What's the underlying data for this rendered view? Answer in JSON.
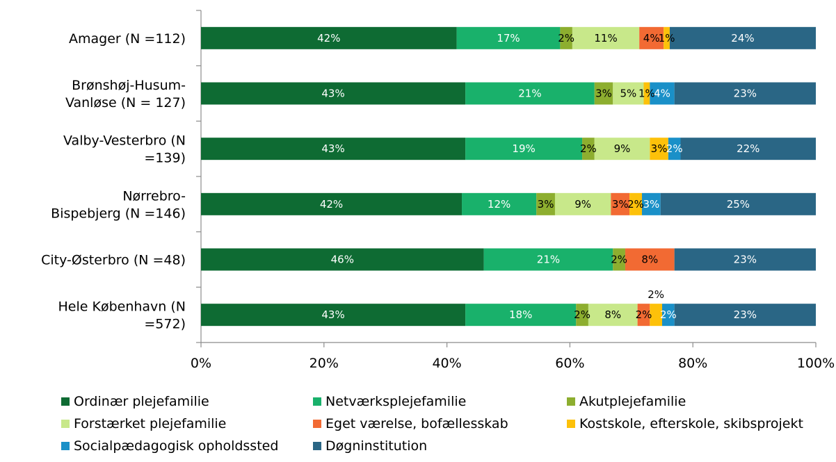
{
  "chart_data": {
    "type": "bar",
    "orientation": "horizontal",
    "stacked": "percent",
    "categories": [
      "Amager (N =112)",
      "Brønshøj-Husum-Vanløse (N = 127)",
      "Valby-Vesterbro (N =139)",
      "Nørrebro-Bispebjerg (N =146)",
      "City-Østerbro (N =48)",
      "Hele København (N =572)"
    ],
    "series": [
      {
        "name": "Ordinær plejefamilie",
        "color": "#0E6B33",
        "label_color": "#ffffff",
        "values": [
          42,
          43,
          43,
          42,
          46,
          43
        ],
        "labels": [
          "42%",
          "43%",
          "43%",
          "42%",
          "46%",
          "43%"
        ]
      },
      {
        "name": "Netværksplejefamilie",
        "color": "#19B16B",
        "label_color": "#ffffff",
        "values": [
          17,
          21,
          19,
          12,
          21,
          18
        ],
        "labels": [
          "17%",
          "21%",
          "19%",
          "12%",
          "21%",
          "18%"
        ]
      },
      {
        "name": "Akutplejefamilie",
        "color": "#8DAE2F",
        "label_color": "#000000",
        "values": [
          2,
          3,
          2,
          3,
          2,
          2
        ],
        "labels": [
          "2%",
          "3%",
          "2%",
          "3%",
          "2%",
          "2%"
        ]
      },
      {
        "name": "Forstærket plejefamilie",
        "color": "#C8E88A",
        "label_color": "#000000",
        "values": [
          11,
          5,
          9,
          9,
          0,
          8
        ],
        "labels": [
          "11%",
          "5%",
          "9%",
          "9%",
          "",
          "8%"
        ]
      },
      {
        "name": "Eget værelse, bofællesskab",
        "color": "#F26A33",
        "label_color": "#000000",
        "values": [
          4,
          0,
          0,
          3,
          8,
          2
        ],
        "labels": [
          "4%",
          "",
          "",
          "3%",
          "8%",
          "2%"
        ]
      },
      {
        "name": "Kostskole, efterskole, skibsprojekt",
        "color": "#FDC10A",
        "label_color": "#000000",
        "values": [
          1,
          1,
          3,
          2,
          0,
          2
        ],
        "labels": [
          "1%",
          "1%",
          "3%",
          "2%",
          "",
          "2%"
        ]
      },
      {
        "name": "Socialpædagogisk opholdssted",
        "color": "#1A90C8",
        "label_color": "#ffffff",
        "values": [
          0,
          4,
          2,
          3,
          0,
          2
        ],
        "labels": [
          "",
          "4%",
          "2%",
          "3%",
          "",
          "2%"
        ]
      },
      {
        "name": "Døgninstitution",
        "color": "#2A6685",
        "label_color": "#ffffff",
        "values": [
          24,
          23,
          22,
          25,
          23,
          23
        ],
        "labels": [
          "24%",
          "23%",
          "22%",
          "25%",
          "23%",
          "23%"
        ]
      }
    ],
    "xlim": [
      0,
      100
    ],
    "x_ticks": [
      "0%",
      "20%",
      "40%",
      "60%",
      "80%",
      "100%"
    ],
    "grid": false,
    "legend_position": "bottom"
  }
}
